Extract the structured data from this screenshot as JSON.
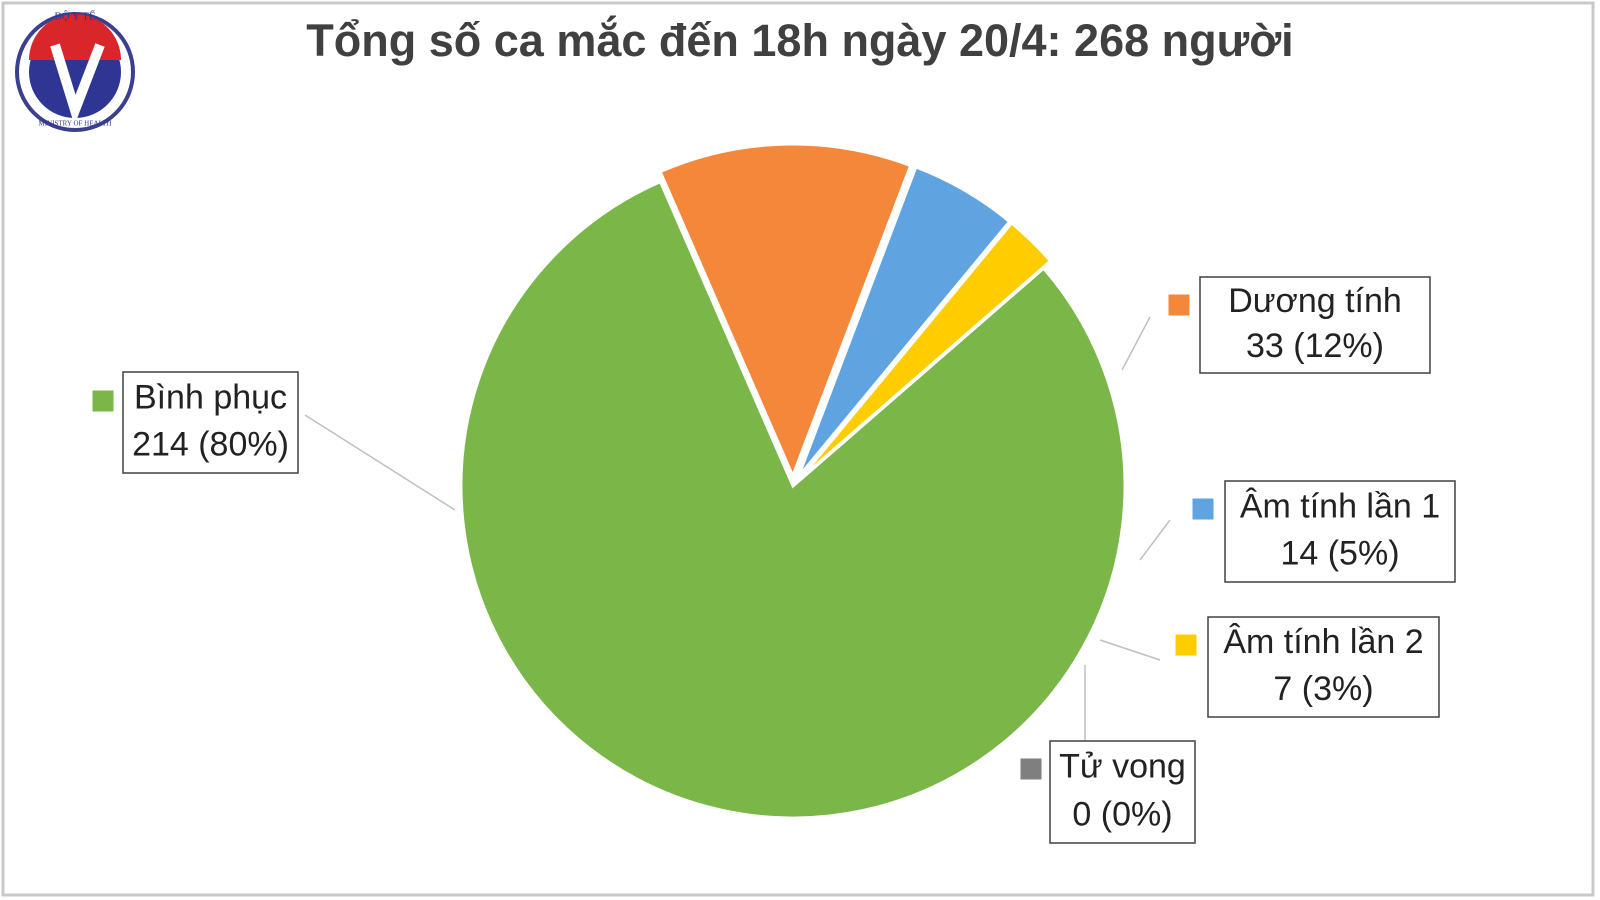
{
  "logo": {
    "top": "BỘ Y TẾ",
    "bottom": "MINISTRY OF HEALTH"
  },
  "chart_data": {
    "type": "pie",
    "title": "Tổng số ca mắc đến 18h ngày 20/4: 268 người",
    "categories": [
      "Bình phục",
      "Dương tính",
      "Âm tính lần 1",
      "Âm tính lần 2",
      "Tử vong"
    ],
    "values": [
      214,
      33,
      14,
      7,
      0
    ],
    "value_labels": [
      "214 (80%)",
      "33 (12%)",
      "14 (5%)",
      "7 (3%)",
      "0 (0%)"
    ],
    "colors": [
      "#7ab648",
      "#f5873a",
      "#5fa3e0",
      "#ffcc00",
      "#7f7f7f"
    ]
  }
}
